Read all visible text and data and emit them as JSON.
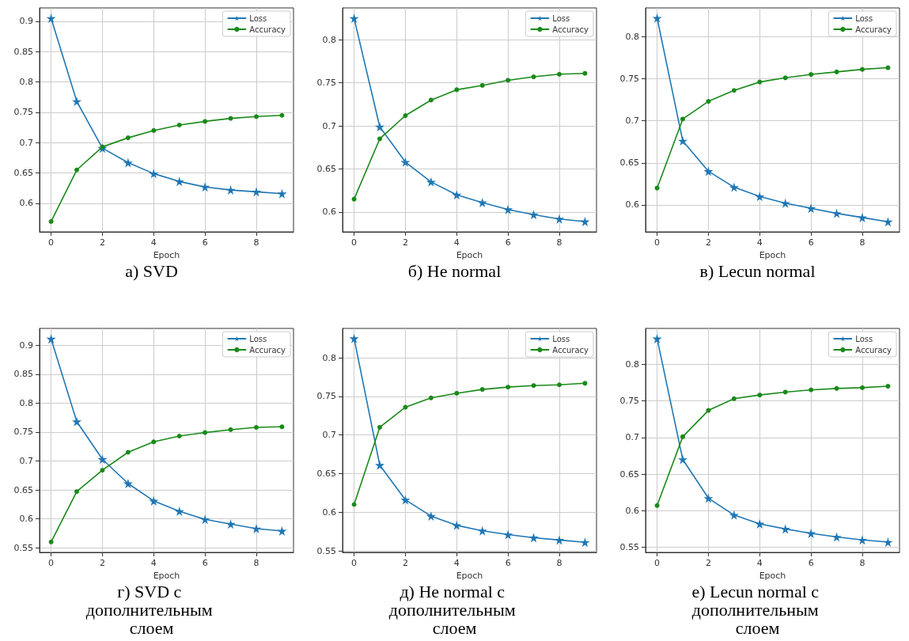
{
  "chart_data": [
    {
      "type": "line",
      "title": "а) SVD",
      "xlabel": "Epoch",
      "x": [
        0,
        1,
        2,
        3,
        4,
        5,
        6,
        7,
        8,
        9
      ],
      "xlim": [
        -0.45,
        9.45
      ],
      "xticks": [
        0,
        2,
        4,
        6,
        8
      ],
      "ylim": [
        0.553,
        0.922
      ],
      "yticks": [
        0.6,
        0.65,
        0.7,
        0.75,
        0.8,
        0.85,
        0.9
      ],
      "grid": true,
      "legend": "top right",
      "series": [
        {
          "name": "Loss",
          "color": "#1f77b4",
          "marker": "star",
          "values": [
            0.905,
            0.768,
            0.691,
            0.667,
            0.649,
            0.636,
            0.627,
            0.622,
            0.619,
            0.616
          ]
        },
        {
          "name": "Accuracy",
          "color": "#1a8a1a",
          "marker": "circle",
          "values": [
            0.57,
            0.655,
            0.693,
            0.708,
            0.72,
            0.729,
            0.735,
            0.74,
            0.743,
            0.745
          ]
        }
      ]
    },
    {
      "type": "line",
      "title": "б) He normal",
      "xlabel": "Epoch",
      "x": [
        0,
        1,
        2,
        3,
        4,
        5,
        6,
        7,
        8,
        9
      ],
      "xlim": [
        -0.45,
        9.45
      ],
      "xticks": [
        0,
        2,
        4,
        6,
        8
      ],
      "ylim": [
        0.577,
        0.837
      ],
      "yticks": [
        0.6,
        0.65,
        0.7,
        0.75,
        0.8
      ],
      "grid": true,
      "legend": "top right",
      "series": [
        {
          "name": "Loss",
          "color": "#1f77b4",
          "marker": "star",
          "values": [
            0.825,
            0.699,
            0.658,
            0.635,
            0.62,
            0.611,
            0.603,
            0.597,
            0.592,
            0.589
          ]
        },
        {
          "name": "Accuracy",
          "color": "#1a8a1a",
          "marker": "circle",
          "values": [
            0.615,
            0.685,
            0.712,
            0.73,
            0.742,
            0.747,
            0.753,
            0.757,
            0.76,
            0.761
          ]
        }
      ]
    },
    {
      "type": "line",
      "title": "в) Lecun normal",
      "xlabel": "Epoch",
      "x": [
        0,
        1,
        2,
        3,
        4,
        5,
        6,
        7,
        8,
        9
      ],
      "xlim": [
        -0.45,
        9.45
      ],
      "xticks": [
        0,
        2,
        4,
        6,
        8
      ],
      "ylim": [
        0.568,
        0.834
      ],
      "yticks": [
        0.6,
        0.65,
        0.7,
        0.75,
        0.8
      ],
      "grid": true,
      "legend": "top right",
      "series": [
        {
          "name": "Loss",
          "color": "#1f77b4",
          "marker": "star",
          "values": [
            0.822,
            0.676,
            0.64,
            0.621,
            0.61,
            0.602,
            0.596,
            0.59,
            0.585,
            0.58
          ]
        },
        {
          "name": "Accuracy",
          "color": "#1a8a1a",
          "marker": "circle",
          "values": [
            0.62,
            0.702,
            0.723,
            0.736,
            0.746,
            0.751,
            0.755,
            0.758,
            0.761,
            0.763
          ]
        }
      ]
    },
    {
      "type": "line",
      "title": "г) SVD с дополнительным слоем",
      "xlabel": "Epoch",
      "x": [
        0,
        1,
        2,
        3,
        4,
        5,
        6,
        7,
        8,
        9
      ],
      "xlim": [
        -0.45,
        9.45
      ],
      "xticks": [
        0,
        2,
        4,
        6,
        8
      ],
      "ylim": [
        0.542,
        0.929
      ],
      "yticks": [
        0.55,
        0.6,
        0.65,
        0.7,
        0.75,
        0.8,
        0.85,
        0.9
      ],
      "grid": true,
      "legend": "top right",
      "series": [
        {
          "name": "Loss",
          "color": "#1f77b4",
          "marker": "star",
          "values": [
            0.911,
            0.768,
            0.703,
            0.661,
            0.631,
            0.613,
            0.599,
            0.591,
            0.583,
            0.579
          ]
        },
        {
          "name": "Accuracy",
          "color": "#1a8a1a",
          "marker": "circle",
          "values": [
            0.56,
            0.647,
            0.684,
            0.715,
            0.733,
            0.743,
            0.749,
            0.754,
            0.758,
            0.759
          ]
        }
      ]
    },
    {
      "type": "line",
      "title": "д) He normal с дополнительным слоем",
      "xlabel": "Epoch",
      "x": [
        0,
        1,
        2,
        3,
        4,
        5,
        6,
        7,
        8,
        9
      ],
      "xlim": [
        -0.45,
        9.45
      ],
      "xticks": [
        0,
        2,
        4,
        6,
        8
      ],
      "ylim": [
        0.548,
        0.838
      ],
      "yticks": [
        0.55,
        0.6,
        0.65,
        0.7,
        0.75,
        0.8
      ],
      "grid": true,
      "legend": "top right",
      "series": [
        {
          "name": "Loss",
          "color": "#1f77b4",
          "marker": "star",
          "values": [
            0.825,
            0.661,
            0.616,
            0.595,
            0.583,
            0.576,
            0.571,
            0.567,
            0.564,
            0.561
          ]
        },
        {
          "name": "Accuracy",
          "color": "#1a8a1a",
          "marker": "circle",
          "values": [
            0.61,
            0.71,
            0.736,
            0.748,
            0.754,
            0.759,
            0.762,
            0.764,
            0.765,
            0.767
          ]
        }
      ]
    },
    {
      "type": "line",
      "title": "е) Lecun normal с дополнительным слоем",
      "xlabel": "Epoch",
      "x": [
        0,
        1,
        2,
        3,
        4,
        5,
        6,
        7,
        8,
        9
      ],
      "xlim": [
        -0.45,
        9.45
      ],
      "xticks": [
        0,
        2,
        4,
        6,
        8
      ],
      "ylim": [
        0.543,
        0.849
      ],
      "yticks": [
        0.55,
        0.6,
        0.65,
        0.7,
        0.75,
        0.8
      ],
      "grid": true,
      "legend": "top right",
      "series": [
        {
          "name": "Loss",
          "color": "#1f77b4",
          "marker": "star",
          "values": [
            0.835,
            0.67,
            0.617,
            0.594,
            0.582,
            0.575,
            0.569,
            0.564,
            0.56,
            0.557
          ]
        },
        {
          "name": "Accuracy",
          "color": "#1a8a1a",
          "marker": "circle",
          "values": [
            0.607,
            0.701,
            0.737,
            0.753,
            0.758,
            0.762,
            0.765,
            0.767,
            0.768,
            0.77
          ]
        }
      ]
    }
  ]
}
